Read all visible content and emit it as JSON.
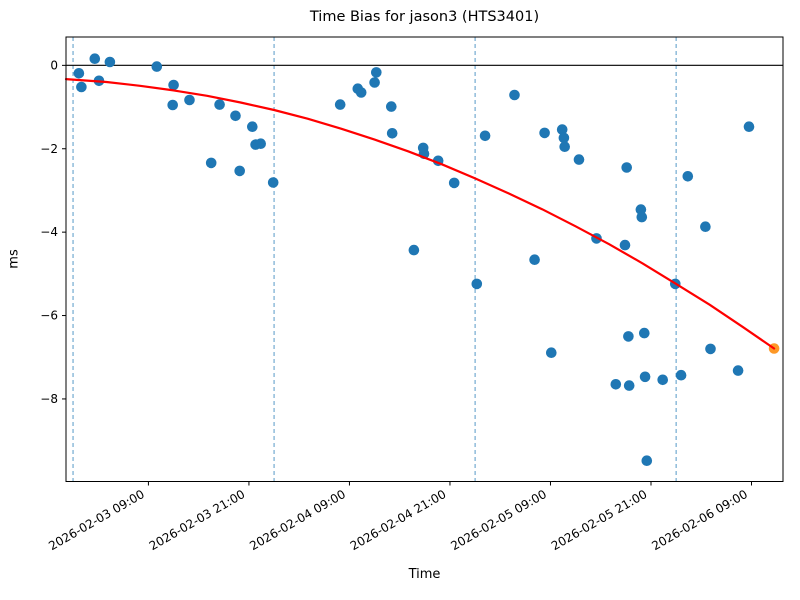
{
  "chart_data": {
    "type": "scatter",
    "title": "Time Bias for jason3 (HTS3401)",
    "xlabel": "Time",
    "ylabel": "ms",
    "x_unit": "hours since 2026-02-03 00:00",
    "y_unit": "ms",
    "xlim_hours": [
      -0.84,
      84.76
    ],
    "ylim": [
      -9.98,
      0.68
    ],
    "grid": "vertical dashed lines at day boundaries only",
    "legend": "none",
    "x_ticks": [
      {
        "hours": 9,
        "label": "2026-02-03 09:00"
      },
      {
        "hours": 21,
        "label": "2026-02-03 21:00"
      },
      {
        "hours": 33,
        "label": "2026-02-04 09:00"
      },
      {
        "hours": 45,
        "label": "2026-02-04 21:00"
      },
      {
        "hours": 57,
        "label": "2026-02-05 09:00"
      },
      {
        "hours": 69,
        "label": "2026-02-05 21:00"
      },
      {
        "hours": 81,
        "label": "2026-02-06 09:00"
      }
    ],
    "y_ticks": [
      {
        "value": 0,
        "label": "0"
      },
      {
        "value": -2,
        "label": "−2"
      },
      {
        "value": -4,
        "label": "−4"
      },
      {
        "value": -6,
        "label": "−6"
      },
      {
        "value": -8,
        "label": "−8"
      }
    ],
    "day_boundary_lines_hours": [
      0,
      24,
      48,
      72
    ],
    "zero_line_value": 0,
    "colors": {
      "measurements": "#1f77b4",
      "latest_point": "#fd9827",
      "fit_curve": "#ff0000",
      "day_boundary": "rgba(31,119,180,0.75)",
      "zero_line": "#000000",
      "spines": "#000000"
    },
    "series": [
      {
        "name": "time-bias-measurements",
        "type": "scatter",
        "color": "#1f77b4",
        "points": [
          [
            0.7,
            -0.19
          ],
          [
            1.0,
            -0.52
          ],
          [
            2.6,
            0.16
          ],
          [
            3.1,
            -0.37
          ],
          [
            4.4,
            0.08
          ],
          [
            10.0,
            -0.03
          ],
          [
            11.9,
            -0.95
          ],
          [
            12.0,
            -0.47
          ],
          [
            13.9,
            -0.83
          ],
          [
            16.5,
            -2.34
          ],
          [
            17.5,
            -0.94
          ],
          [
            19.4,
            -1.21
          ],
          [
            19.9,
            -2.53
          ],
          [
            21.4,
            -1.47
          ],
          [
            21.8,
            -1.9
          ],
          [
            22.4,
            -1.88
          ],
          [
            23.9,
            -2.81
          ],
          [
            31.9,
            -0.94
          ],
          [
            34.0,
            -0.56
          ],
          [
            34.4,
            -0.65
          ],
          [
            36.0,
            -0.41
          ],
          [
            36.2,
            -0.17
          ],
          [
            38.0,
            -0.99
          ],
          [
            38.1,
            -1.63
          ],
          [
            40.7,
            -4.43
          ],
          [
            41.8,
            -1.98
          ],
          [
            41.9,
            -2.12
          ],
          [
            43.6,
            -2.29
          ],
          [
            45.5,
            -2.82
          ],
          [
            48.2,
            -5.24
          ],
          [
            49.2,
            -1.69
          ],
          [
            52.7,
            -0.71
          ],
          [
            55.1,
            -4.66
          ],
          [
            56.3,
            -1.62
          ],
          [
            57.1,
            -6.89
          ],
          [
            58.4,
            -1.54
          ],
          [
            58.6,
            -1.74
          ],
          [
            58.7,
            -1.95
          ],
          [
            60.4,
            -2.26
          ],
          [
            62.5,
            -4.15
          ],
          [
            64.8,
            -7.65
          ],
          [
            65.9,
            -4.31
          ],
          [
            66.1,
            -2.45
          ],
          [
            66.3,
            -6.5
          ],
          [
            66.4,
            -7.68
          ],
          [
            67.8,
            -3.46
          ],
          [
            67.9,
            -3.64
          ],
          [
            68.2,
            -6.42
          ],
          [
            68.3,
            -7.47
          ],
          [
            68.5,
            -9.48
          ],
          [
            70.4,
            -7.54
          ],
          [
            71.9,
            -5.24
          ],
          [
            72.6,
            -7.43
          ],
          [
            73.4,
            -2.66
          ],
          [
            75.5,
            -3.87
          ],
          [
            76.1,
            -6.8
          ],
          [
            79.4,
            -7.32
          ],
          [
            80.7,
            -1.47
          ]
        ]
      },
      {
        "name": "latest-measurement",
        "type": "scatter",
        "color": "#fd9827",
        "points": [
          [
            83.7,
            -6.79
          ]
        ]
      },
      {
        "name": "quadratic-fit",
        "type": "line",
        "color": "#ff0000",
        "coefficients": {
          "a0": -0.34,
          "a1": -0.0119,
          "a2": -0.000779
        },
        "points": [
          [
            -0.84,
            -0.33
          ],
          [
            4,
            -0.4
          ],
          [
            8,
            -0.49
          ],
          [
            12,
            -0.6
          ],
          [
            16,
            -0.73
          ],
          [
            20,
            -0.89
          ],
          [
            24,
            -1.07
          ],
          [
            28,
            -1.28
          ],
          [
            32,
            -1.52
          ],
          [
            36,
            -1.78
          ],
          [
            40,
            -2.06
          ],
          [
            44,
            -2.37
          ],
          [
            48,
            -2.71
          ],
          [
            52,
            -3.07
          ],
          [
            56,
            -3.45
          ],
          [
            60,
            -3.86
          ],
          [
            64,
            -4.29
          ],
          [
            68,
            -4.75
          ],
          [
            72,
            -5.24
          ],
          [
            76,
            -5.74
          ],
          [
            80,
            -6.28
          ],
          [
            83.7,
            -6.79
          ]
        ]
      }
    ]
  }
}
